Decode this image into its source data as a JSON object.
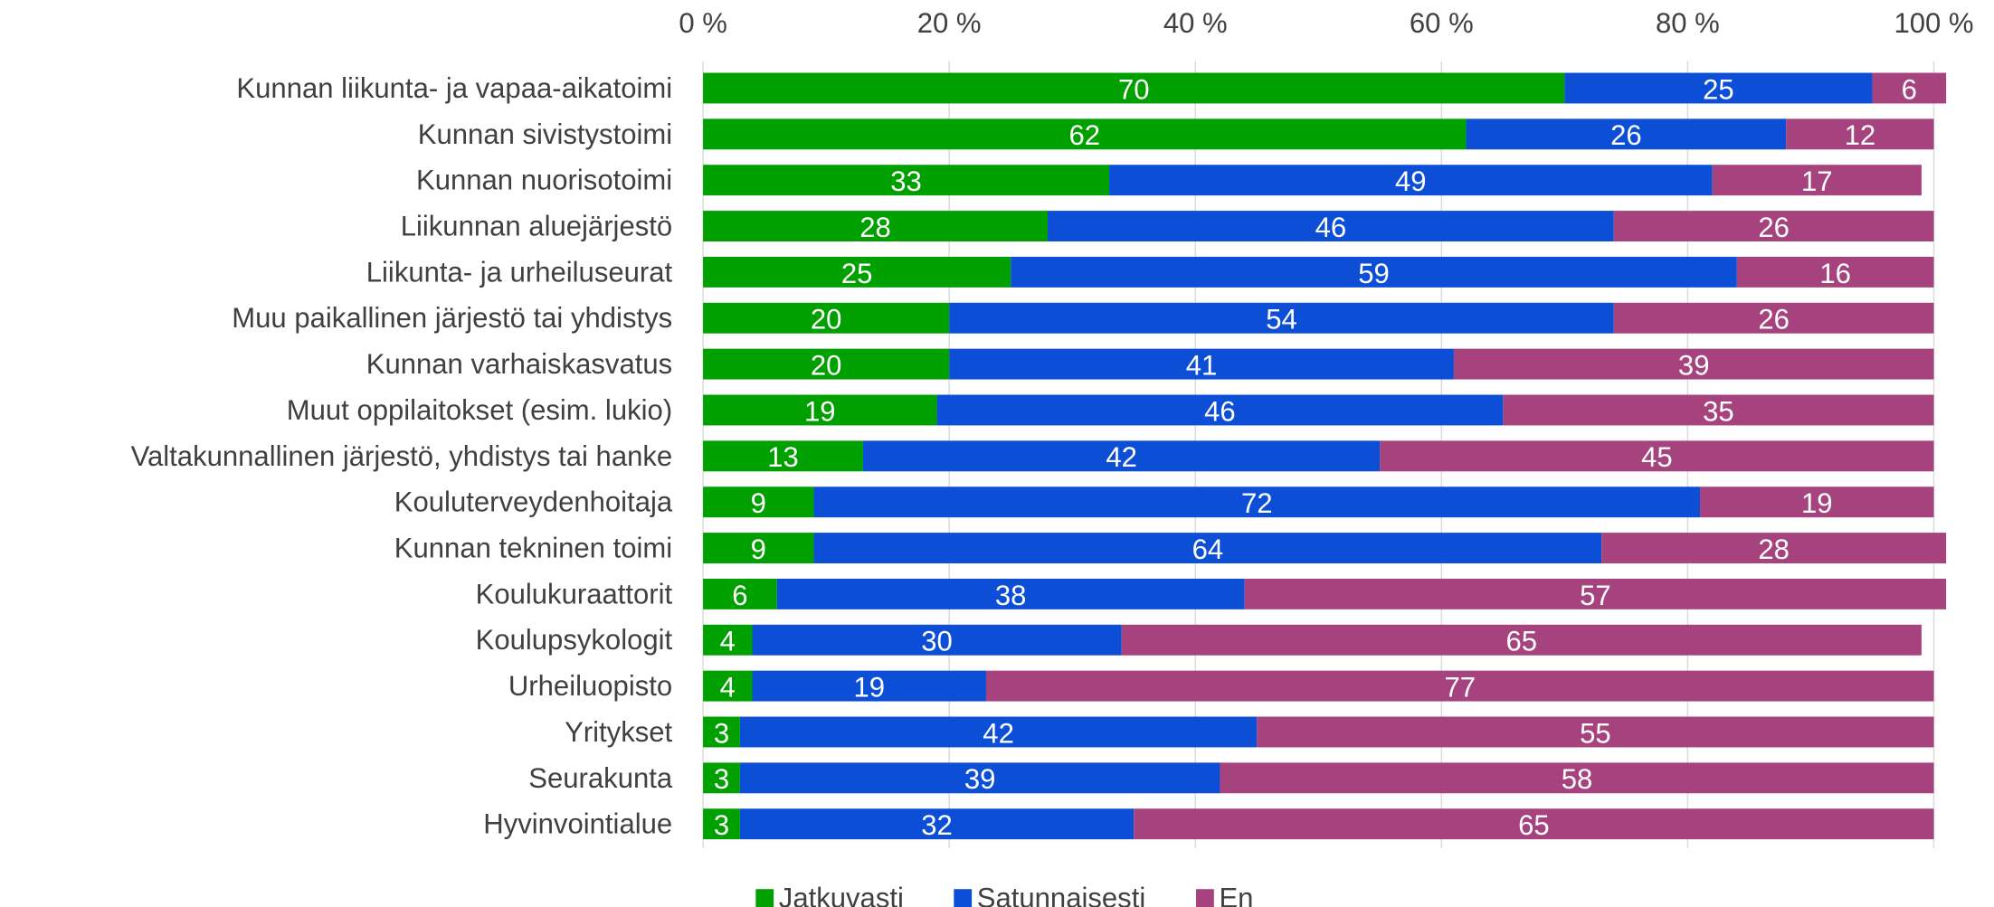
{
  "chart_data": {
    "type": "stacked_bar_horizontal",
    "categories": [
      "Kunnan liikunta- ja vapaa-aikatoimi",
      "Kunnan sivistystoimi",
      "Kunnan nuorisotoimi",
      "Liikunnan aluejärjestö",
      "Liikunta- ja urheiluseurat",
      "Muu paikallinen järjestö tai yhdistys",
      "Kunnan varhaiskasvatus",
      "Muut oppilaitokset (esim. lukio)",
      "Valtakunnallinen järjestö, yhdistys tai hanke",
      "Kouluterveydenhoitaja",
      "Kunnan tekninen toimi",
      "Koulukuraattorit",
      "Koulupsykologit",
      "Urheiluopisto",
      "Yritykset",
      "Seurakunta",
      "Hyvinvointialue"
    ],
    "series": [
      {
        "name": "Jatkuvasti",
        "color": "#00a000",
        "values": [
          70,
          62,
          33,
          28,
          25,
          20,
          20,
          19,
          13,
          9,
          9,
          6,
          4,
          4,
          3,
          3,
          3
        ]
      },
      {
        "name": "Satunnaisesti",
        "color": "#0c4fd6",
        "values": [
          25,
          26,
          49,
          46,
          59,
          54,
          41,
          46,
          42,
          72,
          64,
          38,
          30,
          19,
          42,
          39,
          32
        ]
      },
      {
        "name": "En",
        "color": "#a6437e",
        "values": [
          6,
          12,
          17,
          26,
          16,
          26,
          39,
          35,
          45,
          19,
          28,
          57,
          65,
          77,
          55,
          58,
          65
        ]
      }
    ],
    "xlim": [
      0,
      100
    ],
    "xticks": [
      {
        "value": 0,
        "label": "0 %"
      },
      {
        "value": 20,
        "label": "20 %"
      },
      {
        "value": 40,
        "label": "40 %"
      },
      {
        "value": 60,
        "label": "60 %"
      },
      {
        "value": 80,
        "label": "80 %"
      },
      {
        "value": 100,
        "label": "100 %"
      }
    ],
    "grid": true,
    "legend": "bottom"
  }
}
